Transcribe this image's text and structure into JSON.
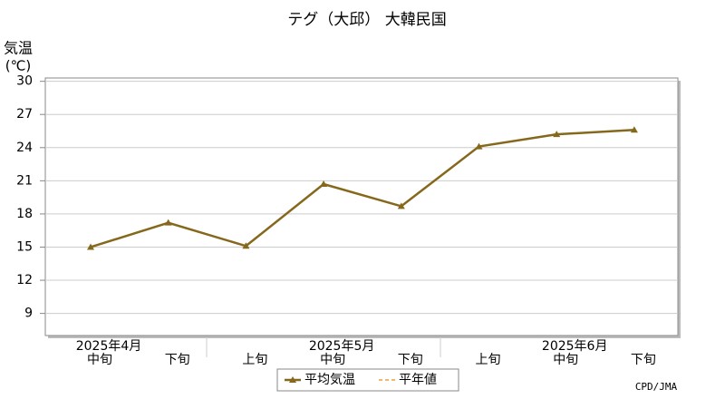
{
  "chart_data": {
    "type": "line",
    "title": "テグ（大邱） 大韓民国",
    "y_label_lines": [
      "気温",
      "(℃)"
    ],
    "categories": [
      "中旬",
      "下旬",
      "上旬",
      "中旬",
      "下旬",
      "上旬",
      "中旬",
      "下旬"
    ],
    "month_labels": [
      "2025年4月",
      null,
      null,
      "2025年5月",
      null,
      null,
      "2025年6月",
      null
    ],
    "series": [
      {
        "name": "平均気温",
        "color": "#86681c",
        "values": [
          15.0,
          17.2,
          15.1,
          20.7,
          18.7,
          24.1,
          25.2,
          25.6
        ]
      },
      {
        "name": "平年値",
        "color": "#e8a040",
        "dashed": true,
        "values": [
          null,
          null,
          null,
          null,
          null,
          null,
          null,
          null
        ]
      }
    ],
    "ylim": [
      7,
      30.3
    ],
    "yticks": [
      9,
      12,
      15,
      18,
      21,
      24,
      27,
      30
    ],
    "grid": true,
    "source": "CPD/JMA"
  }
}
